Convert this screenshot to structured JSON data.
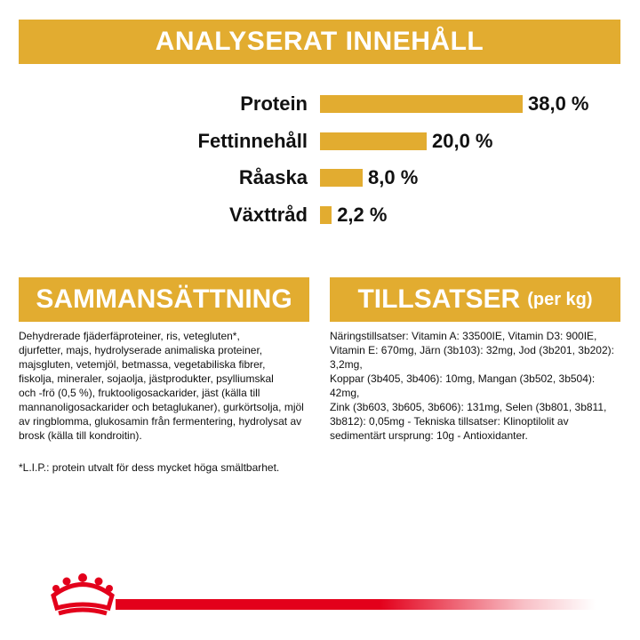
{
  "analysis": {
    "title": "ANALYSERAT INNEHÅLL",
    "rows": [
      {
        "label": "Protein",
        "value": "38,0 %",
        "percent": 38.0
      },
      {
        "label": "Fettinnehåll",
        "value": "20,0 %",
        "percent": 20.0
      },
      {
        "label": "Råaska",
        "value": "8,0 %",
        "percent": 8.0
      },
      {
        "label": "Växttråd",
        "value": "2,2 %",
        "percent": 2.2
      }
    ]
  },
  "composition": {
    "title": "SAMMANSÄTTNING",
    "text": "Dehydrerade fjäderfäproteiner, ris, vetegluten*,\ndjurfetter, majs, hydrolyserade animaliska proteiner,\nmajsgluten, vetemjöl, betmassa, vegetabiliska fibrer,\nfiskolja, mineraler, sojaolja, jästprodukter, psylliumskal\noch -frö (0,5 %), fruktooligosackarider, jäst (källa till\nmannanoligosackarider och betaglukaner), gurkörtsolja, mjöl\nav ringblomma, glukosamin från fermentering, hydrolysat av\nbrosk (källa till kondroitin).",
    "note": "*L.I.P.: protein utvalt för dess mycket höga smältbarhet."
  },
  "additives": {
    "title": "TILLSATSER",
    "title_suffix": "(per kg)",
    "text": "Näringstillsatser: Vitamin A: 33500IE, Vitamin D3: 900IE,\nVitamin E: 670mg, Järn (3b103): 32mg, Jod (3b201, 3b202): 3,2mg,\nKoppar (3b405, 3b406): 10mg, Mangan (3b502, 3b504): 42mg,\nZink (3b603, 3b605, 3b606): 131mg, Selen (3b801, 3b811,\n3b812): 0,05mg - Tekniska tillsatser: Klinoptilolit av\nsedimentärt ursprung: 10g - Antioxidanter."
  },
  "colors": {
    "accent": "#e2ac30",
    "brand_red": "#e3001b"
  },
  "footer": {
    "logo_icon": "royal-canin-crown-icon"
  }
}
